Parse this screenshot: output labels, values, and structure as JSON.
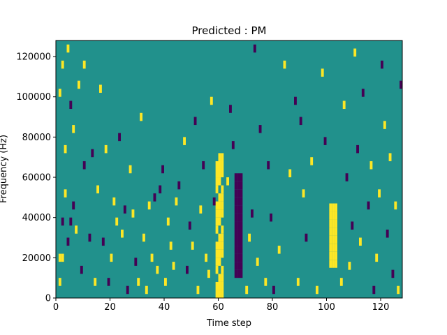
{
  "chart_data": {
    "type": "heatmap",
    "title": "Predicted : PM",
    "xlabel": "Time step",
    "ylabel": "Frequency (Hz)",
    "xlim": [
      0,
      128
    ],
    "ylim": [
      0,
      128000
    ],
    "xticks": [
      0,
      20,
      40,
      60,
      80,
      100,
      120
    ],
    "xtick_labels": [
      "0",
      "20",
      "40",
      "60",
      "80",
      "100",
      "120"
    ],
    "yticks": [
      0,
      20000,
      40000,
      60000,
      80000,
      100000,
      120000
    ],
    "ytick_labels": [
      "0",
      "20000",
      "40000",
      "60000",
      "80000",
      "100000",
      "120000"
    ],
    "colormap": "viridis",
    "background_value_color": "#21918c",
    "high_value_color": "#fde725",
    "low_value_color": "#440154",
    "cell_width_steps": 1,
    "cell_height_hz": 4000,
    "dense_bands": [
      {
        "x_start": 59,
        "x_end": 62,
        "y_start": 0,
        "y_end": 70000,
        "color": "#fde725"
      },
      {
        "x_start": 66,
        "x_end": 69,
        "y_start": 10000,
        "y_end": 60000,
        "color": "#440154"
      },
      {
        "x_start": 101,
        "x_end": 104,
        "y_start": 15000,
        "y_end": 45000,
        "color": "#fde725"
      }
    ],
    "cells": [
      {
        "x": 1,
        "y": 6000,
        "v": 1
      },
      {
        "x": 1,
        "y": 18000,
        "v": 1
      },
      {
        "x": 2,
        "y": 18000,
        "v": 1
      },
      {
        "x": 2,
        "y": 36000,
        "v": 0
      },
      {
        "x": 1,
        "y": 100000,
        "v": 1
      },
      {
        "x": 2,
        "y": 114000,
        "v": 1
      },
      {
        "x": 3,
        "y": 50000,
        "v": 1
      },
      {
        "x": 3,
        "y": 72000,
        "v": 1
      },
      {
        "x": 4,
        "y": 26000,
        "v": 0
      },
      {
        "x": 4,
        "y": 122000,
        "v": 1
      },
      {
        "x": 5,
        "y": 36000,
        "v": 0
      },
      {
        "x": 5,
        "y": 94000,
        "v": 0
      },
      {
        "x": 6,
        "y": 44000,
        "v": 0
      },
      {
        "x": 6,
        "y": 82000,
        "v": 1
      },
      {
        "x": 7,
        "y": 32000,
        "v": 1
      },
      {
        "x": 8,
        "y": 104000,
        "v": 1
      },
      {
        "x": 9,
        "y": 12000,
        "v": 0
      },
      {
        "x": 10,
        "y": 64000,
        "v": 0
      },
      {
        "x": 10,
        "y": 114000,
        "v": 1
      },
      {
        "x": 12,
        "y": 28000,
        "v": 0
      },
      {
        "x": 13,
        "y": 70000,
        "v": 0
      },
      {
        "x": 14,
        "y": 6000,
        "v": 1
      },
      {
        "x": 15,
        "y": 52000,
        "v": 1
      },
      {
        "x": 16,
        "y": 102000,
        "v": 1
      },
      {
        "x": 17,
        "y": 26000,
        "v": 0
      },
      {
        "x": 18,
        "y": 72000,
        "v": 1
      },
      {
        "x": 19,
        "y": 6000,
        "v": 0
      },
      {
        "x": 20,
        "y": 18000,
        "v": 1
      },
      {
        "x": 21,
        "y": 46000,
        "v": 1
      },
      {
        "x": 22,
        "y": 36000,
        "v": 1
      },
      {
        "x": 23,
        "y": 78000,
        "v": 0
      },
      {
        "x": 24,
        "y": 30000,
        "v": 1
      },
      {
        "x": 25,
        "y": 42000,
        "v": 0
      },
      {
        "x": 26,
        "y": 2000,
        "v": 0
      },
      {
        "x": 27,
        "y": 62000,
        "v": 1
      },
      {
        "x": 28,
        "y": 40000,
        "v": 1
      },
      {
        "x": 29,
        "y": 16000,
        "v": 0
      },
      {
        "x": 30,
        "y": 6000,
        "v": 1
      },
      {
        "x": 31,
        "y": 88000,
        "v": 1
      },
      {
        "x": 32,
        "y": 28000,
        "v": 1
      },
      {
        "x": 33,
        "y": 2000,
        "v": 1
      },
      {
        "x": 34,
        "y": 44000,
        "v": 1
      },
      {
        "x": 35,
        "y": 18000,
        "v": 1
      },
      {
        "x": 36,
        "y": 48000,
        "v": 0
      },
      {
        "x": 37,
        "y": 12000,
        "v": 1
      },
      {
        "x": 38,
        "y": 52000,
        "v": 0
      },
      {
        "x": 39,
        "y": 62000,
        "v": 0
      },
      {
        "x": 40,
        "y": 6000,
        "v": 1
      },
      {
        "x": 41,
        "y": 36000,
        "v": 1
      },
      {
        "x": 42,
        "y": 24000,
        "v": 1
      },
      {
        "x": 43,
        "y": 14000,
        "v": 1
      },
      {
        "x": 44,
        "y": 46000,
        "v": 1
      },
      {
        "x": 45,
        "y": 54000,
        "v": 0
      },
      {
        "x": 47,
        "y": 76000,
        "v": 1
      },
      {
        "x": 48,
        "y": 12000,
        "v": 0
      },
      {
        "x": 49,
        "y": 34000,
        "v": 0
      },
      {
        "x": 50,
        "y": 24000,
        "v": 1
      },
      {
        "x": 51,
        "y": 86000,
        "v": 0
      },
      {
        "x": 52,
        "y": 2000,
        "v": 1
      },
      {
        "x": 53,
        "y": 42000,
        "v": 1
      },
      {
        "x": 54,
        "y": 64000,
        "v": 0
      },
      {
        "x": 55,
        "y": 18000,
        "v": 1
      },
      {
        "x": 56,
        "y": 10000,
        "v": 1
      },
      {
        "x": 57,
        "y": 96000,
        "v": 1
      },
      {
        "x": 58,
        "y": 46000,
        "v": 0
      },
      {
        "x": 63,
        "y": 56000,
        "v": 1
      },
      {
        "x": 64,
        "y": 92000,
        "v": 0
      },
      {
        "x": 65,
        "y": 74000,
        "v": 0
      },
      {
        "x": 70,
        "y": 2000,
        "v": 1
      },
      {
        "x": 71,
        "y": 28000,
        "v": 1
      },
      {
        "x": 72,
        "y": 40000,
        "v": 0
      },
      {
        "x": 73,
        "y": 122000,
        "v": 0
      },
      {
        "x": 74,
        "y": 16000,
        "v": 1
      },
      {
        "x": 75,
        "y": 82000,
        "v": 0
      },
      {
        "x": 77,
        "y": 6000,
        "v": 1
      },
      {
        "x": 78,
        "y": 64000,
        "v": 0
      },
      {
        "x": 79,
        "y": 38000,
        "v": 0
      },
      {
        "x": 80,
        "y": 2000,
        "v": 0
      },
      {
        "x": 82,
        "y": 22000,
        "v": 1
      },
      {
        "x": 84,
        "y": 114000,
        "v": 1
      },
      {
        "x": 86,
        "y": 60000,
        "v": 1
      },
      {
        "x": 88,
        "y": 96000,
        "v": 0
      },
      {
        "x": 89,
        "y": 6000,
        "v": 1
      },
      {
        "x": 90,
        "y": 86000,
        "v": 0
      },
      {
        "x": 91,
        "y": 50000,
        "v": 1
      },
      {
        "x": 92,
        "y": 28000,
        "v": 0
      },
      {
        "x": 94,
        "y": 66000,
        "v": 1
      },
      {
        "x": 96,
        "y": 2000,
        "v": 1
      },
      {
        "x": 98,
        "y": 110000,
        "v": 1
      },
      {
        "x": 99,
        "y": 76000,
        "v": 0
      },
      {
        "x": 105,
        "y": 6000,
        "v": 1
      },
      {
        "x": 106,
        "y": 94000,
        "v": 1
      },
      {
        "x": 107,
        "y": 58000,
        "v": 0
      },
      {
        "x": 108,
        "y": 14000,
        "v": 1
      },
      {
        "x": 109,
        "y": 34000,
        "v": 0
      },
      {
        "x": 110,
        "y": 120000,
        "v": 1
      },
      {
        "x": 111,
        "y": 72000,
        "v": 0
      },
      {
        "x": 112,
        "y": 26000,
        "v": 1
      },
      {
        "x": 113,
        "y": 100000,
        "v": 0
      },
      {
        "x": 115,
        "y": 44000,
        "v": 0
      },
      {
        "x": 116,
        "y": 64000,
        "v": 1
      },
      {
        "x": 117,
        "y": 2000,
        "v": 0
      },
      {
        "x": 118,
        "y": 18000,
        "v": 1
      },
      {
        "x": 119,
        "y": 50000,
        "v": 1
      },
      {
        "x": 120,
        "y": 114000,
        "v": 0
      },
      {
        "x": 121,
        "y": 84000,
        "v": 1
      },
      {
        "x": 122,
        "y": 30000,
        "v": 0
      },
      {
        "x": 123,
        "y": 68000,
        "v": 1
      },
      {
        "x": 124,
        "y": 10000,
        "v": 0
      },
      {
        "x": 125,
        "y": 44000,
        "v": 1
      },
      {
        "x": 126,
        "y": 2000,
        "v": 1
      },
      {
        "x": 127,
        "y": 104000,
        "v": 0
      }
    ]
  }
}
